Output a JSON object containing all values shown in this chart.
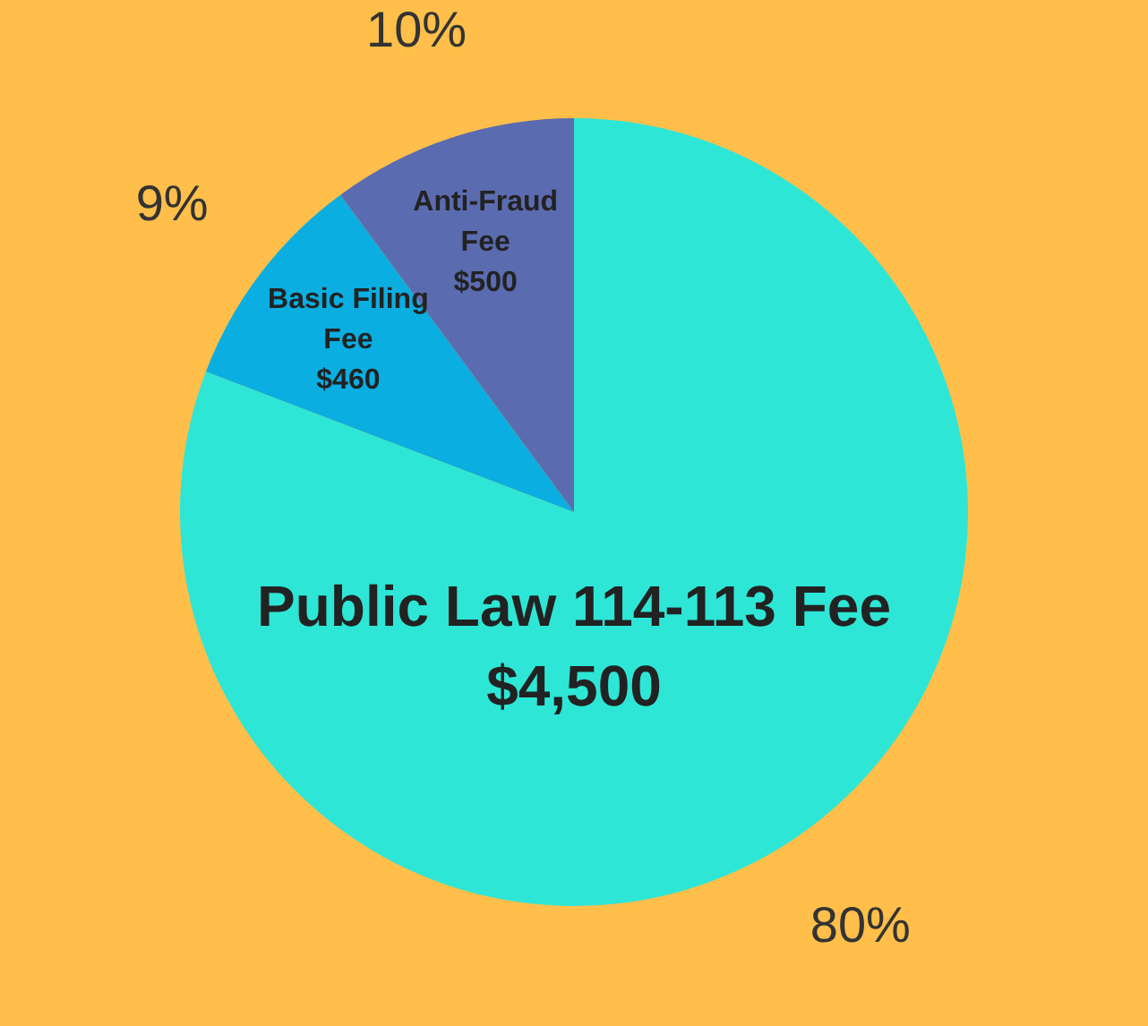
{
  "chart_data": {
    "type": "pie",
    "categories": [
      "Public Law 114-113 Fee $4,500",
      "Basic Filing Fee $460",
      "Anti-Fraud Fee $500"
    ],
    "values": [
      80,
      9,
      10
    ],
    "colors": [
      "#2ee6d6",
      "#0aaee0",
      "#5b6bb0"
    ],
    "value_labels": [
      "80%",
      "9%",
      "10%"
    ],
    "legend": false
  }
}
